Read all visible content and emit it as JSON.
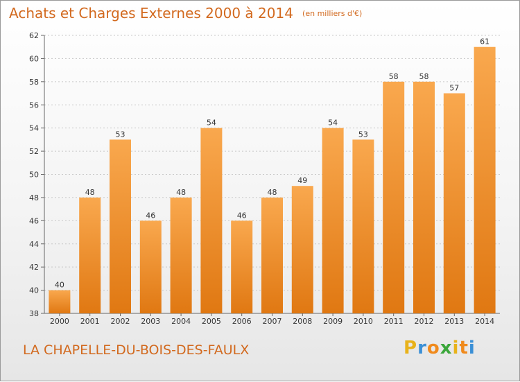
{
  "title": "Achats et Charges Externes 2000 à 2014",
  "unit_note": "(en milliers d'€)",
  "place_name": "LA CHAPELLE-DU-BOIS-DES-FAULX",
  "logo": {
    "letters": [
      "P",
      "r",
      "o",
      "x",
      "i",
      "t",
      "i"
    ],
    "colors": [
      "#e8b21a",
      "#3a8fd6",
      "#f08a1c",
      "#3aa63a",
      "#e8b21a",
      "#f08a1c",
      "#3a8fd6"
    ]
  },
  "colors": {
    "accent": "#d2691e",
    "bar_light": "#f9a84e",
    "bar_dark": "#e07812",
    "grid": "#c8c8c8",
    "axis_text": "#333333"
  },
  "chart_data": {
    "type": "bar",
    "categories": [
      "2000",
      "2001",
      "2002",
      "2003",
      "2004",
      "2005",
      "2006",
      "2007",
      "2008",
      "2009",
      "2010",
      "2011",
      "2012",
      "2013",
      "2014"
    ],
    "values": [
      40,
      48,
      53,
      46,
      48,
      54,
      46,
      48,
      49,
      54,
      53,
      58,
      58,
      57,
      61
    ],
    "value_labels": [
      "40",
      "48",
      "53",
      "46",
      "48",
      "54",
      "46",
      "48",
      "49",
      "54",
      "53",
      "58",
      "58",
      "57",
      "61"
    ],
    "y_ticks": [
      "38",
      "40",
      "42",
      "44",
      "46",
      "48",
      "50",
      "52",
      "54",
      "56",
      "58",
      "60",
      "62"
    ],
    "ylim": [
      38,
      62
    ],
    "grid": true,
    "title": "Achats et Charges Externes 2000 à 2014",
    "xlabel": "",
    "ylabel": ""
  }
}
